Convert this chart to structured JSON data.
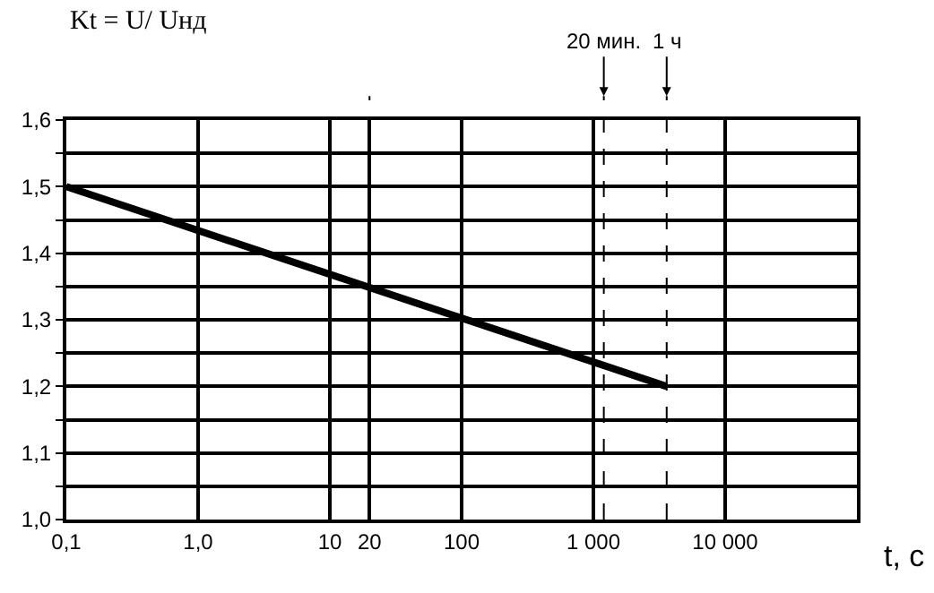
{
  "chart_data": {
    "type": "line",
    "xlabel": "t, с",
    "ylabel": "Kt = U/ Uнд",
    "x": [
      0.1,
      3600
    ],
    "values": [
      1.5,
      1.2
    ],
    "color": "#000000",
    "log": "x",
    "xlim": [
      0.1,
      100000
    ],
    "ylim": [
      1.0,
      1.6
    ],
    "xticks": [
      {
        "value": 0.1,
        "label": "0,1"
      },
      {
        "value": 1,
        "label": "1,0"
      },
      10,
      {
        "value": 20,
        "label": "20"
      },
      100,
      {
        "value": 1000,
        "label": "1 000"
      },
      {
        "value": 10000,
        "label": "10 000"
      },
      {
        "value": 100000,
        "label": null
      }
    ],
    "yticks": [
      {
        "value": 1.0,
        "label": "1,0"
      },
      {
        "value": 1.05,
        "label": null
      },
      {
        "value": 1.1,
        "label": "1,1"
      },
      {
        "value": 1.15,
        "label": null
      },
      {
        "value": 1.2,
        "label": "1,2"
      },
      {
        "value": 1.25,
        "label": null
      },
      {
        "value": 1.3,
        "label": "1,3"
      },
      {
        "value": 1.35,
        "label": null
      },
      {
        "value": 1.4,
        "label": "1,4"
      },
      {
        "value": 1.45,
        "label": null
      },
      {
        "value": 1.5,
        "label": "1,5"
      },
      {
        "value": 1.55,
        "label": null
      },
      {
        "value": 1.6,
        "label": "1,6"
      }
    ],
    "grid": true,
    "marker": "none",
    "line_style": "solid",
    "ref_lines": [
      {
        "axis": "x",
        "value": 20,
        "label": null,
        "line_style": "dashed",
        "color": "#000000"
      },
      {
        "axis": "x",
        "value": 1200,
        "label": "20 мин.",
        "line_style": "dashed",
        "color": "#000000"
      },
      {
        "axis": "x",
        "value": 3600,
        "label": "1 ч",
        "line_style": "dashed",
        "color": "#000000"
      }
    ]
  }
}
